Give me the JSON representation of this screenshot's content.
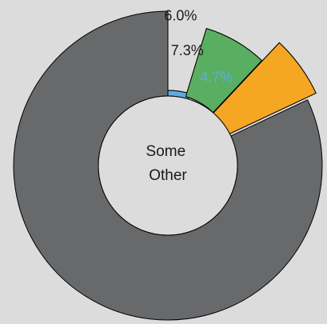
{
  "chart_data": {
    "type": "pie",
    "center_label_lines": [
      "Some",
      "Other"
    ],
    "slices": [
      {
        "value": 4.7,
        "label": "4.7%",
        "fill": "#5dade2",
        "label_color": "#5dade2"
      },
      {
        "value": 7.3,
        "label": "7.3%",
        "fill": "#5aae61",
        "label_color": "#1a1a1a"
      },
      {
        "value": 6.0,
        "label": "6.0%",
        "fill": "#f5a623",
        "label_color": "#1a1a1a"
      },
      {
        "value": 82.0,
        "label": "",
        "fill": "#68696b",
        "label_color": "#1a1a1a"
      }
    ]
  }
}
